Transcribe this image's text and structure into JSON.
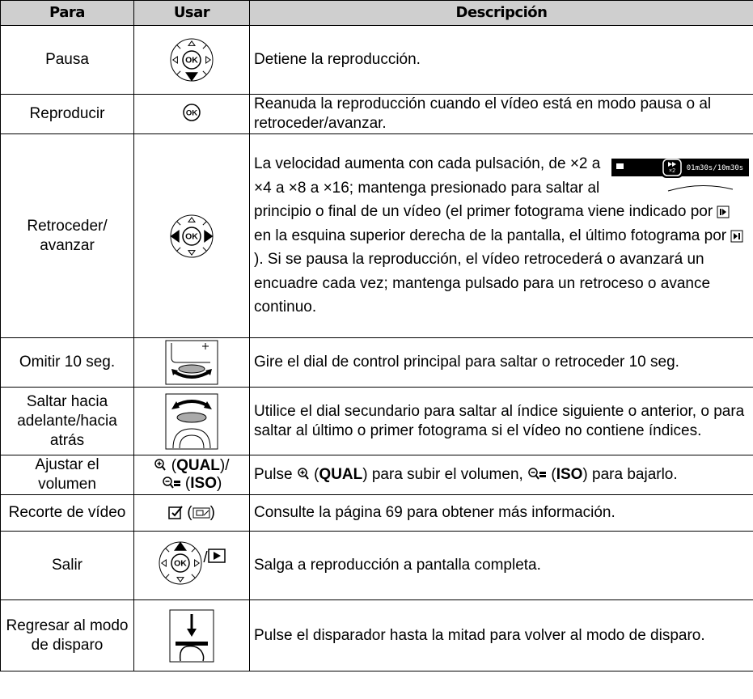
{
  "table": {
    "headers": [
      "Para",
      "Usar",
      "Descripción"
    ],
    "ok_label": "OK",
    "rows": [
      {
        "para": "Pausa",
        "description": "Detiene la reproducción."
      },
      {
        "para": "Reproducir",
        "description": "Reanuda la reproducción cuando el vídeo está en modo pausa o al retroceder/avanzar."
      },
      {
        "para": "Retroceder/ avanzar",
        "screen": {
          "speed": "×2",
          "time": "01m30s/10m30s"
        },
        "description": [
          "La velocidad aumenta con cada pulsación, de ×2 a ×4 a ×8 a ×16; mantenga presionado para saltar al principio o final de un vídeo (el primer fotograma viene indicado por ",
          " en la esquina superior derecha de la pantalla, el último fotograma por ",
          "). Si se pausa la reproducción, el vídeo retrocederá o avanzará un encuadre cada vez; mantenga pulsado para un retroceso o avance continuo."
        ]
      },
      {
        "para": "Omitir 10 seg.",
        "description": "Gire el dial de control principal para saltar o retroceder 10 seg."
      },
      {
        "para": "Saltar hacia adelante/hacia atrás",
        "description": "Utilice el dial secundario para saltar al índice siguiente o anterior, o para saltar al último o primer fotograma si el vídeo no contiene índices."
      },
      {
        "para": "Ajustar el volumen",
        "usar": [
          " (",
          "QUAL",
          ")/",
          " (",
          "ISO",
          ")"
        ],
        "description": [
          "Pulse ",
          " (",
          "QUAL",
          ") para subir el volumen, ",
          " (",
          "ISO",
          ") para bajarlo."
        ]
      },
      {
        "para": "Recorte de vídeo",
        "usar": [
          " (",
          ")"
        ],
        "description": "Consulte la página 69 para obtener más información."
      },
      {
        "para": "Salir",
        "usar": [
          "/"
        ],
        "description": "Salga a reproducción a pantalla completa."
      },
      {
        "para": "Regresar al modo de disparo",
        "description": "Pulse el disparador hasta la mitad para volver al modo de disparo."
      }
    ]
  }
}
